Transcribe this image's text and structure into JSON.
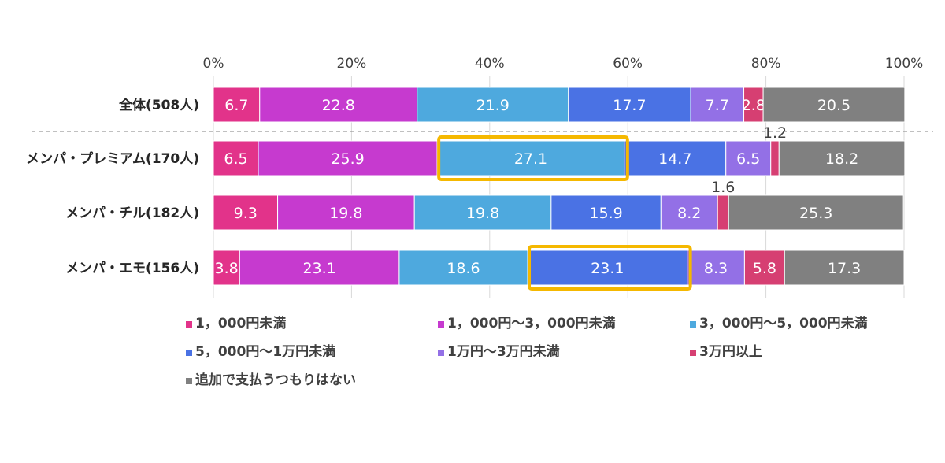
{
  "chart_data": {
    "type": "bar",
    "orientation": "horizontal",
    "stacked": "percent",
    "categories": [
      "全体(508人)",
      "メンパ・プレミアム(170人)",
      "メンパ・チル(182人)",
      "メンパ・エモ(156人)"
    ],
    "x_ticks": [
      "0%",
      "20%",
      "40%",
      "60%",
      "80%",
      "100%"
    ],
    "xlim": [
      0,
      100
    ],
    "grid": true,
    "legend_position": "bottom",
    "series": [
      {
        "name": "1，000円未満",
        "color": "#E2338A",
        "values": [
          6.7,
          6.5,
          9.3,
          3.8
        ]
      },
      {
        "name": "1，000円～3，000円未満",
        "color": "#C63ACF",
        "values": [
          22.8,
          25.9,
          19.8,
          23.1
        ]
      },
      {
        "name": "3，000円～5，000円未満",
        "color": "#4EA9DE",
        "values": [
          21.9,
          27.1,
          19.8,
          18.6
        ]
      },
      {
        "name": "5，000円～1万円未満",
        "color": "#4A72E4",
        "values": [
          17.7,
          14.7,
          15.9,
          23.1
        ]
      },
      {
        "name": "1万円～3万円未満",
        "color": "#9370E6",
        "values": [
          7.7,
          6.5,
          8.2,
          8.3
        ]
      },
      {
        "name": "3万円以上",
        "color": "#D63F72",
        "values": [
          2.8,
          1.2,
          1.6,
          5.8
        ]
      },
      {
        "name": "追加で支払うつもりはない",
        "color": "#808080",
        "values": [
          20.5,
          18.2,
          25.3,
          17.3
        ]
      }
    ],
    "highlights": [
      {
        "category_index": 1,
        "series_index": 2,
        "color": "#F5B800"
      },
      {
        "category_index": 3,
        "series_index": 3,
        "color": "#F5B800"
      }
    ]
  }
}
